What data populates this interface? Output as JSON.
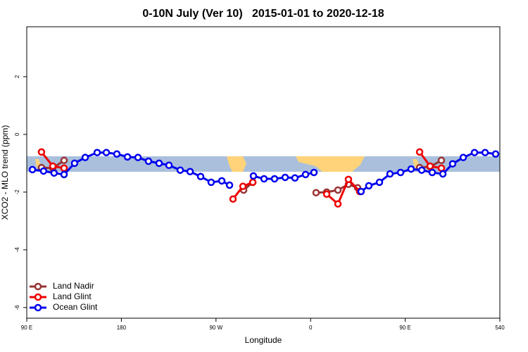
{
  "chart_data": {
    "type": "line",
    "title": "0-10N July (Ver 10)   2015-01-01 to 2020-12-18",
    "x_label": "Longitude",
    "y_label": "XCO2 - MLO trend (ppm)",
    "xlim": [
      90,
      540
    ],
    "xticks": [
      {
        "value": 90,
        "label": "90 E"
      },
      180,
      {
        "value": 270,
        "label": "90 W"
      },
      {
        "value": 360,
        "label": "0"
      },
      {
        "value": 450,
        "label": "90 E"
      },
      540
    ],
    "ylim": [
      -6.37,
      3.73
    ],
    "yticks": [
      -6,
      -4,
      -2,
      0,
      2
    ],
    "legend": "bottom-left",
    "series": [
      {
        "name": "Land Nadir",
        "color": "#993333",
        "x": [
          104,
          114.8,
          125.5,
          null,
          296.3,
          305,
          null,
          365.2,
          375.3,
          386,
          396,
          404.7,
          null,
          463.7,
          473.7,
          484.4
        ],
        "values": [
          -1.15,
          -1.17,
          -0.9,
          null,
          -1.93,
          -1.66,
          null,
          -2.02,
          -2.0,
          -1.93,
          -1.73,
          -1.85,
          null,
          -1.15,
          -1.12,
          -0.9
        ]
      },
      {
        "name": "Land Glint",
        "color": "#ee0000",
        "x": [
          104,
          114.8,
          125.5,
          null,
          286.2,
          295.6,
          305,
          null,
          375.3,
          386,
          396,
          406.7,
          null,
          463.7,
          473.7,
          484.4
        ],
        "values": [
          -0.61,
          -1.1,
          -1.17,
          null,
          -2.24,
          -1.8,
          -1.66,
          null,
          -2.07,
          -2.41,
          -1.56,
          -1.98,
          null,
          -0.61,
          -1.1,
          -1.17
        ]
      },
      {
        "name": "Ocean Glint",
        "color": "#0000ee",
        "x": [
          95.4,
          106,
          116,
          125.5,
          135.5,
          145.6,
          157,
          165.7,
          175.7,
          185.8,
          195.8,
          205.8,
          215.9,
          225.3,
          236,
          245.4,
          255.4,
          265.4,
          275.5,
          282.9,
          null,
          305.6,
          315.7,
          325.7,
          335.8,
          345.1,
          355.2,
          363.2,
          null,
          408,
          415.4,
          425.5,
          435.5,
          445.6,
          455.6,
          465.7,
          475.7,
          485.8,
          495.1,
          505.2,
          515.9,
          526,
          536
        ],
        "values": [
          -1.22,
          -1.27,
          -1.34,
          -1.39,
          -1.0,
          -0.8,
          -0.63,
          -0.63,
          -0.68,
          -0.78,
          -0.8,
          -0.93,
          -1.0,
          -1.07,
          -1.24,
          -1.29,
          -1.46,
          -1.66,
          -1.61,
          -1.76,
          null,
          -1.44,
          -1.54,
          -1.54,
          -1.49,
          -1.51,
          -1.39,
          -1.32,
          null,
          -1.98,
          -1.78,
          -1.66,
          -1.37,
          -1.32,
          -1.2,
          -1.24,
          -1.32,
          -1.37,
          -1.02,
          -0.8,
          -0.63,
          -0.63,
          -0.68
        ]
      }
    ]
  }
}
